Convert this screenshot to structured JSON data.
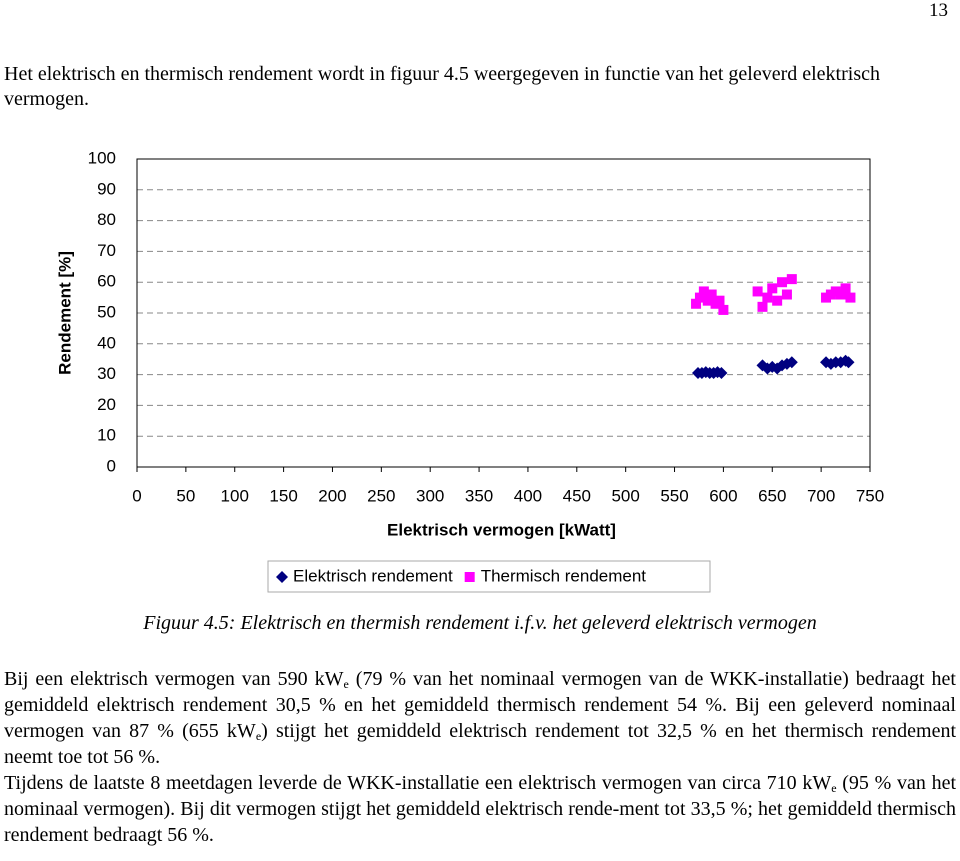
{
  "page_number": "13",
  "intro": "Het elektrisch en thermisch rendement wordt in figuur 4.5 weergegeven in functie van het geleverd elektrisch vermogen.",
  "chart_data": {
    "type": "scatter",
    "x_label": "Elektrisch vermogen [kWatt]",
    "y_label": "Rendement [%]",
    "xlim": [
      0,
      750
    ],
    "xticks": [
      0,
      50,
      100,
      150,
      200,
      250,
      300,
      350,
      400,
      450,
      500,
      550,
      600,
      650,
      700,
      750
    ],
    "ylim": [
      0,
      100
    ],
    "yticks": [
      0,
      10,
      20,
      30,
      40,
      50,
      60,
      70,
      80,
      90,
      100
    ],
    "grid": true,
    "legend": "bottom",
    "series": [
      {
        "name": "Elektrisch rendement",
        "color": "#000080",
        "marker": "diamond",
        "x": [
          574,
          578,
          582,
          586,
          590,
          594,
          598,
          640,
          645,
          650,
          655,
          660,
          665,
          670,
          705,
          710,
          715,
          720,
          725,
          728
        ],
        "values": [
          30.5,
          30.5,
          30.8,
          30.5,
          30.5,
          30.8,
          30.5,
          33,
          32,
          32.5,
          32,
          33,
          33.5,
          34,
          34,
          33.5,
          34,
          34,
          34.5,
          34
        ]
      },
      {
        "name": "Thermisch rendement",
        "color": "#ff00ff",
        "marker": "square",
        "x": [
          572,
          576,
          580,
          584,
          588,
          592,
          596,
          600,
          635,
          640,
          645,
          650,
          655,
          660,
          665,
          670,
          705,
          710,
          715,
          720,
          725,
          730
        ],
        "values": [
          53,
          55,
          57,
          54,
          56,
          53,
          54,
          51,
          57,
          52,
          55,
          58,
          54,
          60,
          56,
          61,
          55,
          56,
          57,
          56,
          58,
          55
        ]
      }
    ]
  },
  "caption": "Figuur 4.5: Elektrisch en thermish rendement i.f.v. het geleverd elektrisch vermogen",
  "body": {
    "paragraphs": [
      [
        "Bij een elektrisch vermogen van 590 kW",
        "e",
        " (79 % van het nominaal vermogen van de WKK-installatie) bedraagt het gemiddeld elektrisch rendement 30,5 % en het gemiddeld thermisch rendement 54 %. Bij een geleverd nominaal vermogen van 87 % (655 kW",
        "e",
        ") stijgt het gemiddeld elektrisch rendement tot 32,5 % en het thermisch rendement neemt toe tot 56 %."
      ],
      [
        "Tijdens de laatste 8 meetdagen leverde de WKK-installatie een elektrisch vermogen van circa 710 kW",
        "e",
        " (95 % van het nominaal vermogen). Bij dit vermogen stijgt het gemiddeld elektrisch rende-ment tot 33,5 %; het gemiddeld thermisch rendement bedraagt 56 %."
      ]
    ]
  }
}
